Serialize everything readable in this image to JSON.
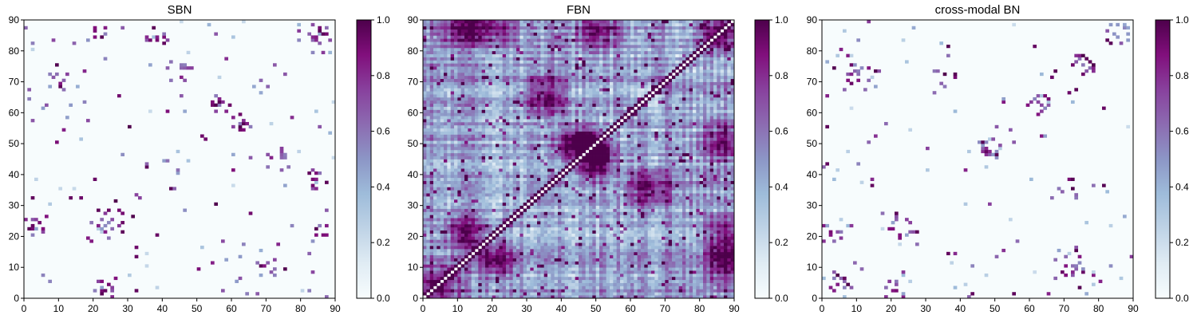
{
  "chart_data": [
    {
      "type": "heatmap",
      "title": "SBN",
      "xlim": [
        0,
        90
      ],
      "ylim": [
        0,
        90
      ],
      "xticks": [
        "0",
        "10",
        "20",
        "30",
        "40",
        "50",
        "60",
        "70",
        "80",
        "90"
      ],
      "yticks": [
        "0",
        "10",
        "20",
        "30",
        "40",
        "50",
        "60",
        "70",
        "80",
        "90"
      ],
      "grid_size": 90,
      "density": "sparse",
      "value_range": [
        0,
        1
      ],
      "colorbar_ticks": [
        "0.0",
        "0.2",
        "0.4",
        "0.6",
        "0.8",
        "1.0"
      ],
      "clusters": [
        [
          20,
          85
        ],
        [
          38,
          85
        ],
        [
          44,
          73
        ],
        [
          55,
          62
        ],
        [
          63,
          58
        ],
        [
          70,
          62
        ],
        [
          65,
          44
        ],
        [
          82,
          85
        ],
        [
          62,
          33
        ],
        [
          58,
          47
        ],
        [
          85,
          85
        ],
        [
          22,
          25
        ],
        [
          10,
          70
        ],
        [
          2,
          22
        ],
        [
          90,
          43
        ]
      ]
    },
    {
      "type": "heatmap",
      "title": "FBN",
      "xlim": [
        0,
        90
      ],
      "ylim": [
        0,
        90
      ],
      "xticks": [
        "0",
        "10",
        "20",
        "30",
        "40",
        "50",
        "60",
        "70",
        "80",
        "90"
      ],
      "yticks": [
        "0",
        "10",
        "20",
        "30",
        "40",
        "50",
        "60",
        "70",
        "80",
        "90"
      ],
      "grid_size": 90,
      "density": "dense",
      "value_range": [
        0,
        1
      ],
      "colorbar_ticks": [
        "0.0",
        "0.2",
        "0.4",
        "0.6",
        "0.8",
        "1.0"
      ],
      "clusters": [
        [
          47,
          47
        ],
        [
          45,
          50
        ],
        [
          12,
          20
        ],
        [
          20,
          10
        ],
        [
          5,
          5
        ],
        [
          85,
          85
        ],
        [
          87,
          20
        ],
        [
          20,
          87
        ],
        [
          28,
          20
        ],
        [
          10,
          87
        ],
        [
          87,
          10
        ],
        [
          50,
          86
        ],
        [
          65,
          30
        ],
        [
          35,
          65
        ]
      ]
    },
    {
      "type": "heatmap",
      "title": "cross-modal BN",
      "xlim": [
        0,
        90
      ],
      "ylim": [
        0,
        90
      ],
      "xticks": [
        "0",
        "10",
        "20",
        "30",
        "40",
        "50",
        "60",
        "70",
        "80",
        "90"
      ],
      "yticks": [
        "0",
        "10",
        "20",
        "30",
        "40",
        "50",
        "60",
        "70",
        "80",
        "90"
      ],
      "grid_size": 90,
      "density": "sparse",
      "value_range": [
        0,
        1
      ],
      "colorbar_ticks": [
        "0.0",
        "0.2",
        "0.4",
        "0.6",
        "0.8",
        "1.0"
      ],
      "clusters": [
        [
          62,
          62
        ],
        [
          48,
          48
        ],
        [
          22,
          24
        ],
        [
          10,
          72
        ],
        [
          85,
          85
        ],
        [
          35,
          72
        ],
        [
          2,
          20
        ],
        [
          75,
          75
        ],
        [
          65,
          34
        ],
        [
          5,
          5
        ]
      ]
    }
  ],
  "colorscale": {
    "name": "BuPu",
    "stops": [
      "#f7fcfd",
      "#e0ecf4",
      "#bfd3e6",
      "#9ebcda",
      "#8c96c6",
      "#8c6bb1",
      "#88419d",
      "#810f7c",
      "#4d004b"
    ]
  }
}
